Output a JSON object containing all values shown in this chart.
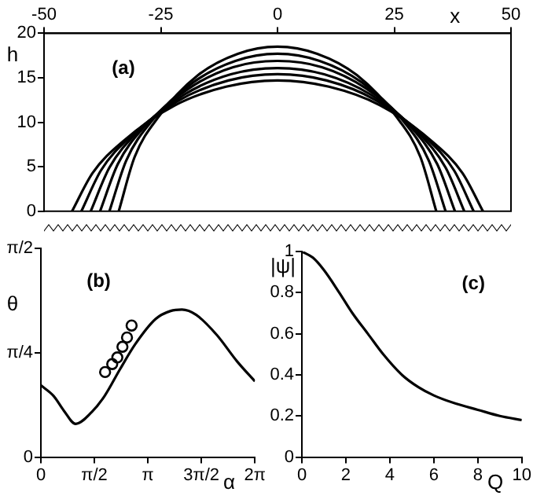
{
  "chart_data": [
    {
      "type": "line",
      "title": "(a)",
      "xlabel": "x",
      "ylabel": "h",
      "xlim": [
        -50,
        50
      ],
      "xticks": [
        -50,
        -25,
        0,
        25,
        50
      ],
      "ylim": [
        0,
        20
      ],
      "yticks": [
        0,
        5,
        10,
        15,
        20
      ],
      "grid": false,
      "legend": false,
      "series": [
        {
          "color": "#000000",
          "x": [
            -34,
            -30.6,
            -25.5,
            -17,
            -8.5,
            0,
            8.5,
            17,
            25.5,
            30.6,
            34
          ],
          "values": [
            0,
            6.1,
            10.6,
            15.3,
            17.7,
            18.5,
            17.7,
            15.3,
            10.6,
            6.1,
            0
          ]
        },
        {
          "color": "#000000",
          "x": [
            -36,
            -32.4,
            -27,
            -18,
            -9,
            0,
            9,
            18,
            27,
            32.4,
            36
          ],
          "values": [
            0,
            5.7,
            10.1,
            14.5,
            16.9,
            17.7,
            16.9,
            14.5,
            10.1,
            5.7,
            0
          ]
        },
        {
          "color": "#000000",
          "x": [
            -38,
            -34.2,
            -28.5,
            -19,
            -9.5,
            0,
            9.5,
            19,
            28.5,
            34.2,
            38
          ],
          "values": [
            0,
            5.3,
            9.5,
            13.8,
            16.2,
            16.9,
            16.2,
            13.8,
            9.5,
            5.3,
            0
          ]
        },
        {
          "color": "#000000",
          "x": [
            -40,
            -36,
            -30,
            -20,
            -10,
            0,
            10,
            20,
            30,
            36,
            40
          ],
          "values": [
            0,
            4.9,
            8.9,
            13.1,
            15.4,
            16.1,
            15.4,
            13.1,
            8.9,
            4.9,
            0
          ]
        },
        {
          "color": "#000000",
          "x": [
            -42,
            -37.8,
            -31.5,
            -21,
            -10.5,
            0,
            10.5,
            21,
            31.5,
            37.8,
            42
          ],
          "values": [
            0,
            4.6,
            8.4,
            12.5,
            14.7,
            15.4,
            14.7,
            12.5,
            8.4,
            4.6,
            0
          ]
        },
        {
          "color": "#000000",
          "x": [
            -44,
            -39.6,
            -33,
            -22,
            -11,
            0,
            11,
            22,
            33,
            39.6,
            44
          ],
          "values": [
            0,
            4.3,
            7.9,
            11.9,
            14,
            14.7,
            14,
            11.9,
            7.9,
            4.3,
            0
          ]
        }
      ]
    },
    {
      "type": "line",
      "title": "(b)",
      "xlabel": "α",
      "ylabel": "θ",
      "xlim": [
        0,
        6.2832
      ],
      "xticks": [
        0,
        {
          "value": 1.5708,
          "label": "π/2"
        },
        {
          "value": 3.1416,
          "label": "π"
        },
        {
          "value": 4.7124,
          "label": "3π/2"
        },
        {
          "value": 6.2832,
          "label": "2π"
        }
      ],
      "ylim": [
        0,
        1.5708
      ],
      "yticks": [
        0,
        {
          "value": 0.7854,
          "label": "π/4"
        },
        {
          "value": 1.5708,
          "label": "π/2"
        }
      ],
      "grid": false,
      "legend": false,
      "series": [
        {
          "color": "#000000",
          "x": [
            0,
            0.374,
            0.673,
            1.02,
            1.496,
            1.87,
            2.32,
            2.77,
            3.37,
            3.81,
            4.14,
            4.56,
            5.16,
            5.76,
            6.2832
          ],
          "values": [
            0.54,
            0.46,
            0.35,
            0.25,
            0.34,
            0.46,
            0.66,
            0.85,
            1.04,
            1.1,
            1.11,
            1.07,
            0.92,
            0.72,
            0.57
          ]
        },
        {
          "type": "scatter",
          "marker": "circle",
          "color": "#000000",
          "x": [
            1.885,
            2.094,
            2.244,
            2.394,
            2.528,
            2.663
          ],
          "values": [
            0.64,
            0.7,
            0.75,
            0.83,
            0.9,
            0.99
          ]
        }
      ]
    },
    {
      "type": "line",
      "title": "(c)",
      "xlabel": "Q",
      "ylabel": "|ψ|",
      "xlim": [
        0,
        10
      ],
      "xticks": [
        0,
        2,
        4,
        6,
        8,
        10
      ],
      "ylim": [
        0,
        1
      ],
      "yticks": [
        0,
        0.2,
        0.4,
        0.6,
        0.8,
        1
      ],
      "grid": false,
      "legend": false,
      "series": [
        {
          "color": "#000000",
          "x": [
            0,
            0.5,
            1,
            1.7,
            2.3,
            3,
            3.7,
            4.55,
            5.3,
            6,
            7,
            8,
            9,
            10
          ],
          "values": [
            1,
            0.97,
            0.91,
            0.8,
            0.7,
            0.6,
            0.5,
            0.4,
            0.34,
            0.3,
            0.26,
            0.23,
            0.2,
            0.18
          ]
        }
      ]
    }
  ]
}
